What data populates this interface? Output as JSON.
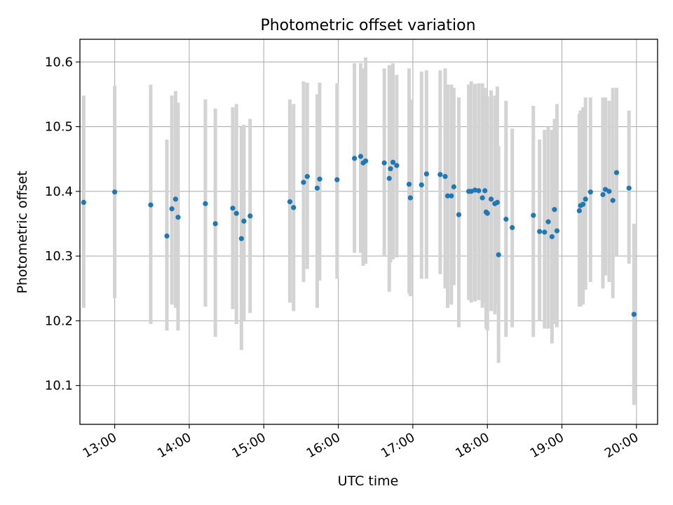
{
  "chart_data": {
    "type": "scatter",
    "title": "Photometric offset variation",
    "xlabel": "UTC time",
    "ylabel": "Photometric offset",
    "x_unit": "hours (UTC)",
    "xlim": [
      "12:32",
      "20:17"
    ],
    "ylim": [
      10.04,
      10.635
    ],
    "grid": true,
    "legend": "none",
    "x_ticks": [
      "13:00",
      "14:00",
      "15:00",
      "16:00",
      "17:00",
      "18:00",
      "19:00",
      "20:00"
    ],
    "y_ticks": [
      "10.1",
      "10.2",
      "10.3",
      "10.4",
      "10.5",
      "10.6"
    ],
    "colors": {
      "points": "#1f77b4",
      "error_bars": "#d3d3d3",
      "grid": "#b0b0b0"
    },
    "series": [
      {
        "x": [
          "12:35",
          "13:00",
          "13:29",
          "13:42",
          "13:46",
          "13:49",
          "13:51",
          "14:13",
          "14:21",
          "14:35",
          "14:38",
          "14:42",
          "14:44",
          "14:49",
          "15:21",
          "15:24",
          "15:32",
          "15:35",
          "15:43",
          "15:45",
          "15:59",
          "16:13",
          "16:18",
          "16:20",
          "16:22",
          "16:37",
          "16:41",
          "16:42",
          "16:44",
          "16:47",
          "16:57",
          "16:58",
          "17:07",
          "17:11",
          "17:22",
          "17:26",
          "17:28",
          "17:31",
          "17:33",
          "17:37",
          "17:45",
          "17:47",
          "17:50",
          "17:53",
          "17:56",
          "17:58",
          "17:59",
          "18:00",
          "18:03",
          "18:06",
          "18:08",
          "18:09",
          "18:15",
          "18:20",
          "18:37",
          "18:42",
          "18:46",
          "18:49",
          "18:52",
          "18:54",
          "18:56",
          "19:14",
          "19:15",
          "19:17",
          "19:19",
          "19:23",
          "19:33",
          "19:35",
          "19:38",
          "19:41",
          "19:44",
          "19:54",
          "19:58"
        ],
        "y": [
          10.383,
          10.399,
          10.379,
          10.331,
          10.373,
          10.388,
          10.36,
          10.381,
          10.35,
          10.374,
          10.366,
          10.327,
          10.354,
          10.362,
          10.384,
          10.375,
          10.414,
          10.423,
          10.405,
          10.419,
          10.418,
          10.451,
          10.454,
          10.444,
          10.447,
          10.444,
          10.42,
          10.435,
          10.445,
          10.44,
          10.411,
          10.39,
          10.41,
          10.427,
          10.426,
          10.423,
          10.393,
          10.393,
          10.407,
          10.364,
          10.4,
          10.4,
          10.402,
          10.401,
          10.39,
          10.401,
          10.368,
          10.366,
          10.388,
          10.381,
          10.383,
          10.302,
          10.357,
          10.344,
          10.363,
          10.338,
          10.337,
          10.353,
          10.33,
          10.372,
          10.339,
          10.37,
          10.378,
          10.38,
          10.388,
          10.399,
          10.395,
          10.403,
          10.4,
          10.386,
          10.429,
          10.405,
          10.21
        ],
        "err_low": [
          10.22,
          10.235,
          10.195,
          10.185,
          10.225,
          10.22,
          10.185,
          10.222,
          10.175,
          10.218,
          10.195,
          10.155,
          10.2,
          10.212,
          10.228,
          10.215,
          10.26,
          10.28,
          10.22,
          10.262,
          10.265,
          10.305,
          10.305,
          10.285,
          10.288,
          10.3,
          10.245,
          10.29,
          10.295,
          10.298,
          10.242,
          10.238,
          10.265,
          10.265,
          10.272,
          10.25,
          10.22,
          10.225,
          10.255,
          10.19,
          10.232,
          10.228,
          10.23,
          10.232,
          10.22,
          10.228,
          10.188,
          10.185,
          10.215,
          10.21,
          10.225,
          10.135,
          10.175,
          10.19,
          10.175,
          10.2,
          10.188,
          10.188,
          10.165,
          10.195,
          10.19,
          10.222,
          10.222,
          10.225,
          10.248,
          10.26,
          10.25,
          10.27,
          10.26,
          10.235,
          10.3,
          10.288,
          10.07
        ],
        "err_high": [
          10.548,
          10.563,
          10.565,
          10.48,
          10.548,
          10.555,
          10.537,
          10.542,
          10.528,
          10.53,
          10.535,
          10.5,
          10.503,
          10.512,
          10.542,
          10.535,
          10.57,
          10.568,
          10.55,
          10.568,
          10.567,
          10.598,
          10.598,
          10.59,
          10.607,
          10.59,
          10.595,
          10.595,
          10.598,
          10.58,
          10.59,
          10.542,
          10.585,
          10.587,
          10.587,
          10.59,
          10.565,
          10.565,
          10.56,
          10.545,
          10.565,
          10.57,
          10.566,
          10.567,
          10.567,
          10.56,
          10.545,
          10.547,
          10.556,
          10.548,
          10.562,
          10.47,
          10.54,
          10.497,
          10.532,
          10.48,
          10.495,
          10.5,
          10.495,
          10.512,
          10.535,
          10.52,
          10.525,
          10.53,
          10.545,
          10.545,
          10.545,
          10.545,
          10.54,
          10.56,
          10.56,
          10.525,
          10.35
        ]
      }
    ]
  }
}
